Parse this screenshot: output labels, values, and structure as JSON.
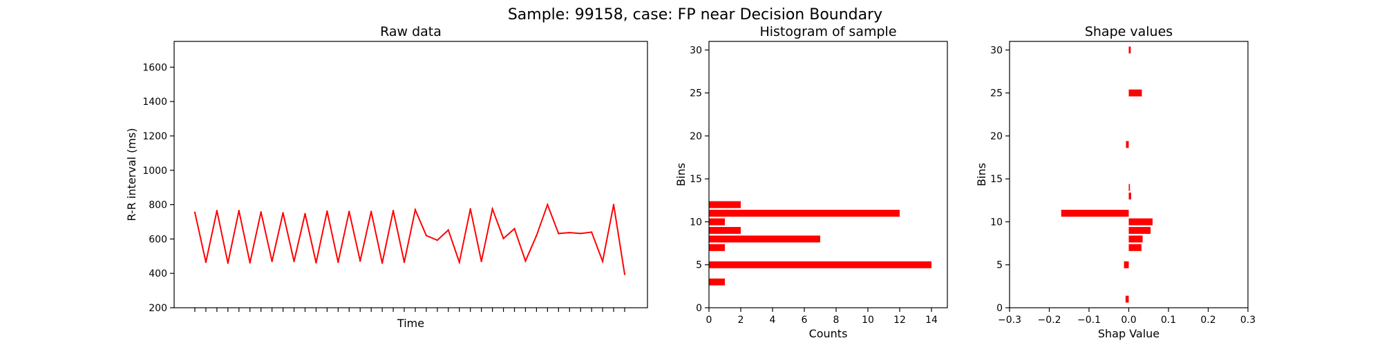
{
  "figure": {
    "suptitle": "Sample: 99158, case: FP near Decision Boundary"
  },
  "colors": {
    "series": "#ff0000"
  },
  "chart_data": [
    {
      "type": "line",
      "title": "Raw data",
      "xlabel": "Time",
      "ylabel": "R-R interval (ms)",
      "ylim": [
        200,
        1750
      ],
      "yticks": [
        200,
        400,
        600,
        800,
        1000,
        1200,
        1400,
        1600
      ],
      "xtick_count": 40,
      "xtick_labels_shown": false,
      "grid": false,
      "series": [
        {
          "values": [
            755,
            465,
            765,
            460,
            765,
            462,
            757,
            470,
            752,
            470,
            747,
            462,
            762,
            465,
            760,
            472,
            760,
            460,
            765,
            465,
            770,
            620,
            593,
            652,
            465,
            775,
            470,
            775,
            603,
            660,
            472,
            620,
            800,
            632,
            637,
            632,
            640,
            470,
            800,
            395
          ]
        }
      ]
    },
    {
      "type": "bar",
      "orientation": "horizontal",
      "title": "Histogram of sample",
      "xlabel": "Counts",
      "ylabel": "Bins",
      "xlim": [
        0,
        15
      ],
      "ylim": [
        0,
        31
      ],
      "xticks": [
        0,
        2,
        4,
        6,
        8,
        10,
        12,
        14
      ],
      "yticks": [
        0,
        5,
        10,
        15,
        20,
        25,
        30
      ],
      "grid": false,
      "bins": [
        3,
        5,
        7,
        8,
        9,
        10,
        11,
        12
      ],
      "values": [
        1,
        14,
        1,
        7,
        2,
        1,
        12,
        2
      ]
    },
    {
      "type": "bar",
      "orientation": "horizontal",
      "title": "Shape values",
      "xlabel": "Shap Value",
      "ylabel": "Bins",
      "xlim": [
        -0.3,
        0.3
      ],
      "ylim": [
        0,
        31
      ],
      "xticks": [
        -0.3,
        -0.2,
        -0.1,
        0.0,
        0.1,
        0.2,
        0.3
      ],
      "xtick_labels": [
        "−0.3",
        "−0.2",
        "−0.1",
        "0.0",
        "0.1",
        "0.2",
        "0.3"
      ],
      "yticks": [
        0,
        5,
        10,
        15,
        20,
        25,
        30
      ],
      "grid": false,
      "bins": [
        1,
        5,
        7,
        8,
        9,
        10,
        11,
        13,
        14,
        19,
        25,
        30
      ],
      "values": [
        -0.008,
        -0.012,
        0.032,
        0.035,
        0.055,
        0.06,
        -0.17,
        0.006,
        0.003,
        -0.007,
        0.033,
        0.005
      ]
    }
  ]
}
